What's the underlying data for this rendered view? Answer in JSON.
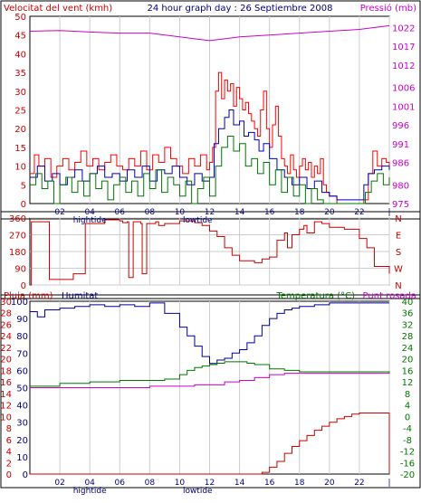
{
  "chart_data": [
    {
      "id": "wind-pressure",
      "type": "line",
      "title": "24 hour graph day : 26 Septiembre 2008",
      "left_axis_label": "Velocitat del vent (kmh)",
      "right_axis_label": "Pressió (mb)",
      "left_ylim": [
        0,
        50
      ],
      "left_ticks": [
        "0",
        "5",
        "10",
        "15",
        "20",
        "25",
        "30",
        "35",
        "40",
        "45",
        "50"
      ],
      "right_ylim": [
        975,
        1025
      ],
      "right_ticks": [
        "975",
        "980",
        "986",
        "991",
        "996",
        "1001",
        "1006",
        "1012",
        "1017",
        "1022"
      ],
      "right_tick_values": [
        975,
        980,
        986,
        991,
        996,
        1001,
        1006,
        1012,
        1017,
        1022
      ],
      "x_ticks": [
        "02",
        "04",
        "06",
        "08",
        "10",
        "12",
        "14",
        "16",
        "18",
        "20",
        "22",
        "|"
      ],
      "x_tick_hours": [
        2,
        4,
        6,
        8,
        10,
        12,
        14,
        16,
        18,
        20,
        22,
        24
      ],
      "tide_labels": [
        {
          "text": "hightide",
          "hour": 4
        },
        {
          "text": "lowtide",
          "hour": 11.2
        }
      ],
      "series": [
        {
          "key": "gust",
          "axis": "left",
          "color": "#ff0000",
          "x": [
            0,
            0.3,
            0.6,
            1,
            1.4,
            1.8,
            2.2,
            2.6,
            3,
            3.4,
            3.8,
            4.2,
            4.6,
            5,
            5.4,
            5.8,
            6.2,
            6.6,
            7,
            7.4,
            7.8,
            8.2,
            8.6,
            9,
            9.4,
            9.8,
            10.2,
            10.6,
            11,
            11.4,
            11.8,
            12,
            12.2,
            12.4,
            12.6,
            12.8,
            13,
            13.2,
            13.4,
            13.6,
            13.8,
            14,
            14.2,
            14.4,
            14.6,
            14.8,
            15,
            15.2,
            15.4,
            15.6,
            15.8,
            16,
            16.2,
            16.4,
            16.6,
            16.8,
            17,
            17.2,
            17.4,
            17.6,
            17.8,
            18,
            18.2,
            18.4,
            18.6,
            18.8,
            19,
            19.2,
            19.4,
            19.6,
            19.8,
            20,
            20.5,
            21,
            21.5,
            22,
            22.3,
            22.6,
            22.9,
            23.2,
            23.5,
            23.8,
            24
          ],
          "y": [
            8,
            13,
            10,
            12,
            7,
            10,
            12,
            9,
            11,
            14,
            10,
            12,
            9,
            11,
            13,
            10,
            9,
            12,
            10,
            14,
            9,
            13,
            11,
            15,
            12,
            10,
            8,
            12,
            10,
            13,
            9,
            11,
            15,
            30,
            35,
            28,
            33,
            30,
            32,
            26,
            31,
            28,
            25,
            27,
            24,
            22,
            20,
            18,
            25,
            30,
            20,
            15,
            21,
            26,
            18,
            12,
            10,
            8,
            13,
            9,
            7,
            10,
            12,
            9,
            11,
            7,
            10,
            8,
            12,
            5,
            3,
            2,
            0,
            0,
            0,
            0,
            1,
            8,
            14,
            10,
            12,
            11,
            9
          ]
        },
        {
          "key": "average",
          "axis": "left",
          "color": "#0000bb",
          "x": [
            0,
            0.5,
            1,
            1.5,
            2,
            2.5,
            3,
            3.5,
            4,
            4.5,
            5,
            5.5,
            6,
            6.5,
            7,
            7.5,
            8,
            8.5,
            9,
            9.5,
            10,
            10.5,
            11,
            11.5,
            12,
            12.3,
            12.6,
            13,
            13.3,
            13.6,
            14,
            14.3,
            14.6,
            15,
            15.3,
            15.6,
            16,
            16.5,
            17,
            17.5,
            18,
            18.5,
            19,
            19.5,
            20,
            20.5,
            21,
            21.5,
            22,
            22.3,
            22.6,
            23,
            23.5,
            24
          ],
          "y": [
            7,
            10,
            6,
            8,
            5,
            7,
            9,
            6,
            8,
            10,
            7,
            8,
            6,
            9,
            7,
            10,
            6,
            9,
            8,
            10,
            7,
            5,
            8,
            6,
            7,
            16,
            20,
            23,
            25,
            21,
            22,
            18,
            19,
            17,
            14,
            16,
            12,
            9,
            7,
            5,
            7,
            4,
            6,
            3,
            2,
            1,
            1,
            1,
            1,
            5,
            8,
            9,
            10,
            9
          ]
        },
        {
          "key": "minimum",
          "axis": "left",
          "color": "#007700",
          "x": [
            0,
            0.4,
            0.8,
            1.2,
            1.6,
            2,
            2.4,
            2.8,
            3.2,
            3.6,
            4,
            4.4,
            4.8,
            5.2,
            5.6,
            6,
            6.4,
            6.8,
            7.2,
            7.6,
            8,
            8.4,
            8.8,
            9.2,
            9.6,
            10,
            10.4,
            10.8,
            11.2,
            11.6,
            12,
            12.4,
            12.8,
            13.2,
            13.6,
            14,
            14.4,
            14.8,
            15.2,
            15.6,
            16,
            16.4,
            16.8,
            17.2,
            17.6,
            18,
            18.4,
            18.8,
            19.2,
            19.6,
            20,
            21,
            22,
            22.4,
            22.8,
            23.2,
            23.6,
            24
          ],
          "y": [
            5,
            8,
            4,
            6,
            0,
            5,
            7,
            3,
            6,
            2,
            8,
            4,
            6,
            1,
            5,
            7,
            3,
            6,
            2,
            8,
            4,
            9,
            3,
            7,
            5,
            2,
            6,
            0,
            4,
            7,
            2,
            10,
            15,
            18,
            14,
            16,
            10,
            12,
            8,
            11,
            5,
            9,
            3,
            7,
            2,
            5,
            0,
            4,
            1,
            0,
            0,
            0,
            0,
            3,
            6,
            8,
            5,
            7
          ]
        },
        {
          "key": "pressure",
          "axis": "right",
          "color": "#cc00cc",
          "x": [
            0,
            2,
            4,
            6,
            8,
            10,
            11,
            12,
            13,
            14,
            16,
            18,
            20,
            22,
            24
          ],
          "y": [
            1021,
            1021.2,
            1020.8,
            1020.5,
            1020.5,
            1019.5,
            1019,
            1018.5,
            1019,
            1019.5,
            1020,
            1020.5,
            1021,
            1021.5,
            1022.5
          ]
        }
      ]
    },
    {
      "id": "wind-direction",
      "type": "line",
      "left_ylim": [
        0,
        360
      ],
      "left_ticks": [
        "0",
        "90",
        "180",
        "270",
        "360"
      ],
      "right_ticks": [
        "N",
        "W",
        "S",
        "E",
        "N"
      ],
      "x_ticks": [
        "02",
        "04",
        "06",
        "08",
        "10",
        "12",
        "14",
        "16",
        "18",
        "20",
        "22",
        "|"
      ],
      "x_tick_hours": [
        2,
        4,
        6,
        8,
        10,
        12,
        14,
        16,
        18,
        20,
        22,
        24
      ],
      "series": [
        {
          "key": "direction",
          "axis": "left",
          "color": "#cc0000",
          "x": [
            0,
            0.1,
            1.1,
            1.3,
            2.8,
            2.9,
            3.5,
            3.7,
            5,
            6,
            6.2,
            6.5,
            6.6,
            6.8,
            6.9,
            7.4,
            7.5,
            7.6,
            7.8,
            8.4,
            8.6,
            9,
            10,
            11,
            11.5,
            12,
            12.5,
            13,
            13.5,
            14,
            15,
            15.5,
            16,
            16.5,
            17,
            17.2,
            17.5,
            18,
            18.3,
            18.5,
            19,
            19.5,
            20,
            21,
            21.5,
            22,
            22.5,
            23,
            24
          ],
          "y": [
            0,
            340,
            340,
            30,
            30,
            60,
            60,
            330,
            350,
            345,
            335,
            340,
            40,
            40,
            340,
            330,
            60,
            60,
            330,
            340,
            320,
            330,
            345,
            335,
            320,
            290,
            260,
            200,
            160,
            130,
            120,
            140,
            150,
            240,
            280,
            200,
            270,
            300,
            320,
            280,
            340,
            330,
            310,
            300,
            300,
            250,
            200,
            100,
            60
          ]
        }
      ]
    },
    {
      "id": "rain-humidity-temp",
      "type": "line",
      "left_axis_label": "Pluja (mm)",
      "humidity_axis_label": "Humitat",
      "right_axis_label_temp": "Temperatura (°C)",
      "right_axis_label_dew": "Punt rosada",
      "rain_ticks": [
        "0",
        "2",
        "4",
        "6",
        "8",
        "10",
        "12",
        "14",
        "16",
        "18",
        "20",
        "22",
        "24",
        "26",
        "28",
        "30"
      ],
      "humidity_ticks": [
        "0",
        "10",
        "20",
        "30",
        "40",
        "50",
        "60",
        "70",
        "80",
        "90",
        "100"
      ],
      "humidity_tick_values": [
        0,
        10,
        20,
        30,
        40,
        50,
        60,
        70,
        80,
        90,
        100
      ],
      "temp_ticks": [
        "-20",
        "-16",
        "-12",
        "-8",
        "-4",
        "0",
        "4",
        "8",
        "12",
        "16",
        "20",
        "24",
        "28",
        "32",
        "36",
        "40"
      ],
      "rain_ylim": [
        0,
        30
      ],
      "temp_ylim": [
        -20,
        40
      ],
      "x_ticks": [
        "02",
        "04",
        "06",
        "08",
        "10",
        "12",
        "14",
        "16",
        "18",
        "20",
        "22",
        "|"
      ],
      "x_tick_hours": [
        2,
        4,
        6,
        8,
        10,
        12,
        14,
        16,
        18,
        20,
        22,
        24
      ],
      "tide_labels": [
        {
          "text": "hightide",
          "hour": 4
        },
        {
          "text": "lowtide",
          "hour": 11.2
        }
      ],
      "series": [
        {
          "key": "humidity",
          "axis": "humidity",
          "color": "#000099",
          "x": [
            0,
            0.5,
            1,
            2,
            3,
            4,
            5,
            6,
            7,
            8,
            9,
            10,
            10.5,
            11,
            11.5,
            12,
            12.5,
            13,
            13.5,
            14,
            14.5,
            15,
            15.5,
            16,
            16.5,
            17,
            17.5,
            18,
            19,
            20,
            21,
            22,
            23,
            24
          ],
          "y": [
            94,
            91,
            95,
            96,
            97,
            98,
            97,
            98,
            97,
            99,
            93,
            85,
            80,
            74,
            68,
            64,
            66,
            67,
            70,
            72,
            76,
            80,
            86,
            90,
            93,
            95,
            96,
            97,
            98,
            99,
            99,
            99,
            99,
            99
          ]
        },
        {
          "key": "temperature",
          "axis": "temp",
          "color": "#007700",
          "x": [
            0,
            2,
            4,
            6,
            8,
            9,
            10,
            10.5,
            11,
            11.5,
            12,
            12.5,
            13,
            13.5,
            14,
            14.5,
            15,
            16,
            17,
            18,
            20,
            22,
            24
          ],
          "y": [
            10.5,
            11.5,
            12,
            12.5,
            12.5,
            13,
            14.5,
            16,
            17,
            17.5,
            18,
            18.5,
            19,
            19,
            19,
            18.5,
            18,
            16.5,
            16,
            15.5,
            15.5,
            15.5,
            15
          ]
        },
        {
          "key": "dewpoint",
          "axis": "temp",
          "color": "#cc00cc",
          "x": [
            0,
            2,
            4,
            6,
            8,
            10,
            11,
            12,
            13,
            14,
            15,
            16,
            17,
            18,
            20,
            22,
            24
          ],
          "y": [
            10,
            10,
            10,
            10,
            10.5,
            10.5,
            11,
            11,
            12,
            12.5,
            13.5,
            14.5,
            15,
            15,
            15,
            15,
            15
          ]
        },
        {
          "key": "rain",
          "axis": "rain",
          "color": "#cc0000",
          "x": [
            0,
            15,
            15.5,
            16,
            16.5,
            17,
            17.5,
            18,
            18.5,
            19,
            19.5,
            20,
            20.5,
            21,
            21.5,
            22,
            23,
            23.8,
            24
          ],
          "y": [
            0,
            0,
            0.3,
            1.2,
            2.2,
            3.6,
            4.8,
            5.8,
            6.7,
            7.6,
            8.3,
            9,
            9.6,
            10,
            10.4,
            10.6,
            10.6,
            10.6,
            0
          ]
        }
      ]
    }
  ]
}
